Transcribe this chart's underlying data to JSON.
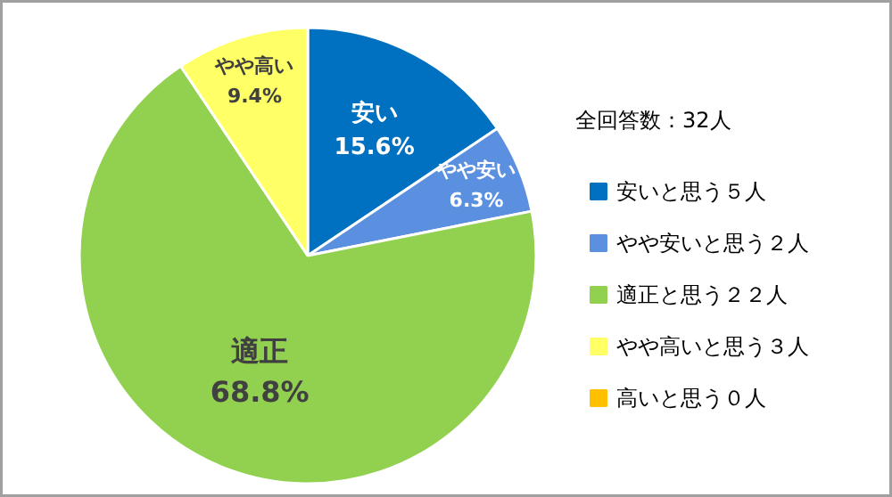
{
  "chart_data": {
    "type": "pie",
    "legend_title": "全回答数：32人",
    "categories": [
      "安いと思う５人",
      "やや安いと思う２人",
      "適正と思う２２人",
      "やや高いと思う３人",
      "高いと思う０人"
    ],
    "values": [
      15.6,
      6.3,
      68.8,
      9.4,
      0
    ],
    "value_labels": [
      "15.6%",
      "6.3%",
      "68.8%",
      "9.4%",
      null
    ],
    "annotations": [
      "安い",
      "やや安い",
      "適正",
      "やや高い"
    ],
    "colors": [
      "#0070c0",
      "#5b8fe0",
      "#92d050",
      "#ffff66",
      "#ffc000"
    ],
    "legend": "right"
  }
}
